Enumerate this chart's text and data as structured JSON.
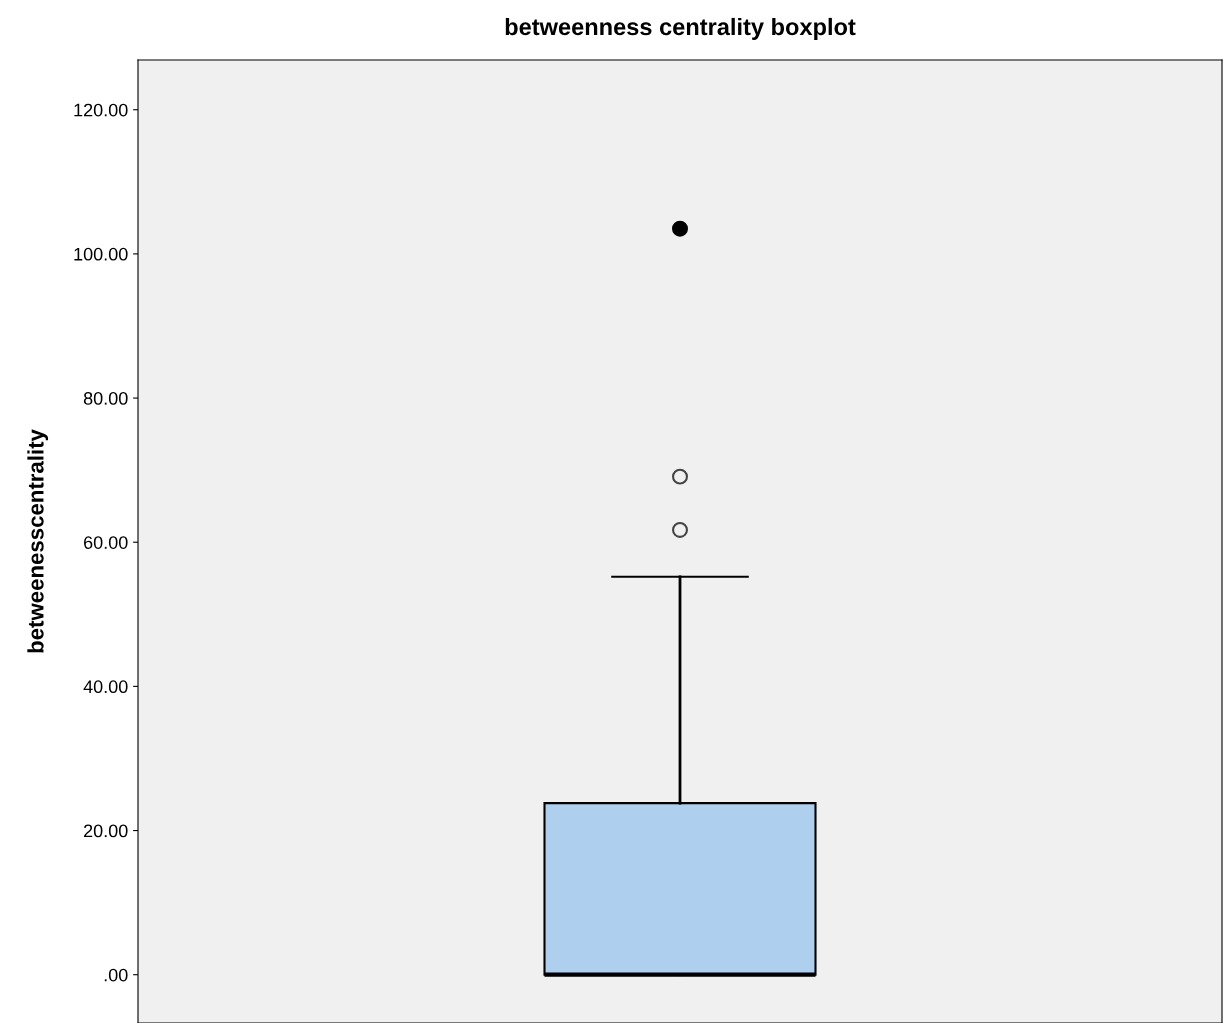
{
  "chart_data": {
    "type": "box",
    "title": "betweenness centrality boxplot",
    "ylabel": "betweenesscentrality",
    "categories": [
      null
    ],
    "ylim": [
      -6.7,
      126.9
    ],
    "yticks": [
      {
        "value": 0,
        "label": ".00"
      },
      {
        "value": 20,
        "label": "20.00"
      },
      {
        "value": 40,
        "label": "40.00"
      },
      {
        "value": 60,
        "label": "60.00"
      },
      {
        "value": 80,
        "label": "80.00"
      },
      {
        "value": 100,
        "label": "100.00"
      },
      {
        "value": 120,
        "label": "120.00"
      }
    ],
    "tick_labels": "y",
    "grid": false,
    "legend": false,
    "series": [
      {
        "color": "#aecfee",
        "boxes": [
          {
            "low": 0,
            "q1": 0,
            "median": 0,
            "q3": 23.8,
            "high": 55.2,
            "outliers": [
              61.7,
              69.1
            ]
          }
        ]
      },
      {
        "type": "scatter",
        "color": "#000000",
        "marker": "circle",
        "values": [
          103.5
        ]
      }
    ]
  }
}
